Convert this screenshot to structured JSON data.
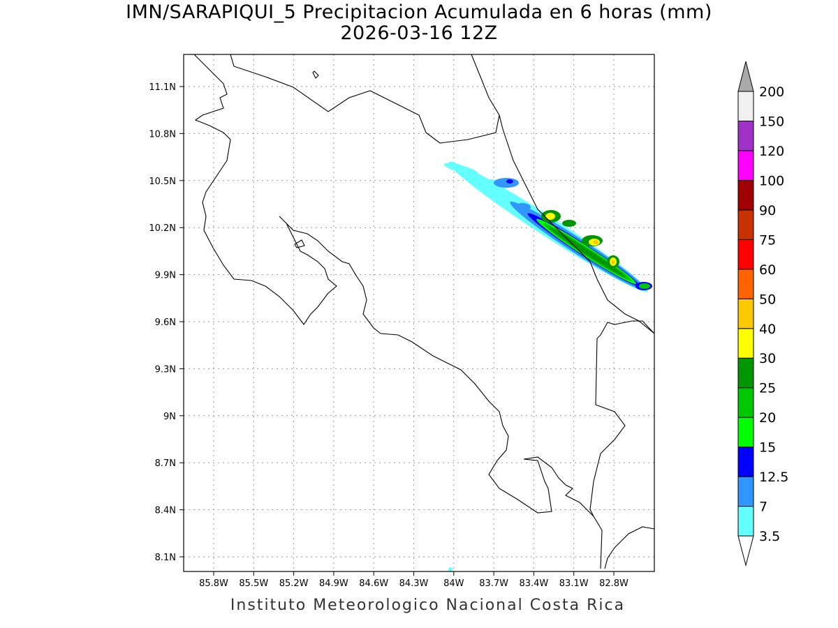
{
  "title": "IMN/SARAPIQUI_5 Precipitacion Acumulada en 6 horas (mm)",
  "subtitle": "2026-03-16 12Z",
  "footer": "Instituto Meteorologico Nacional Costa Rica",
  "chart_data": {
    "type": "filled-contour-map",
    "region": "Costa Rica",
    "units": "mm",
    "lon_range": [
      -86.03,
      -82.5
    ],
    "lat_range": [
      8.0,
      11.3
    ],
    "x_ticks": [
      "85.8W",
      "85.5W",
      "85.2W",
      "84.9W",
      "84.6W",
      "84.3W",
      "84W",
      "83.7W",
      "83.4W",
      "83.1W",
      "82.8W"
    ],
    "y_ticks": [
      "11.1N",
      "10.8N",
      "10.5N",
      "10.2N",
      "9.9N",
      "9.6N",
      "9.3N",
      "9N",
      "8.7N",
      "8.4N",
      "8.1N"
    ],
    "grid": true,
    "legend_position": "right",
    "levels": [
      "3.5",
      "7",
      "12.5",
      "15",
      "20",
      "25",
      "30",
      "40",
      "50",
      "60",
      "75",
      "90",
      "100",
      "120",
      "150",
      "200"
    ],
    "colors": [
      "#ffffff",
      "#64ffff",
      "#3296ff",
      "#0000ff",
      "#00ff00",
      "#00c800",
      "#009600",
      "#ffff00",
      "#ffc800",
      "#ff6400",
      "#ff0000",
      "#c83200",
      "#a00000",
      "#ff00ff",
      "#a032c8",
      "#f0f0f0",
      "#aaaaaa"
    ],
    "max_region": "Caribbean slope band ~10.6N 83.9W to 9.8N 82.5W, peaks 40-50 mm near 10.0N 82.8W"
  }
}
